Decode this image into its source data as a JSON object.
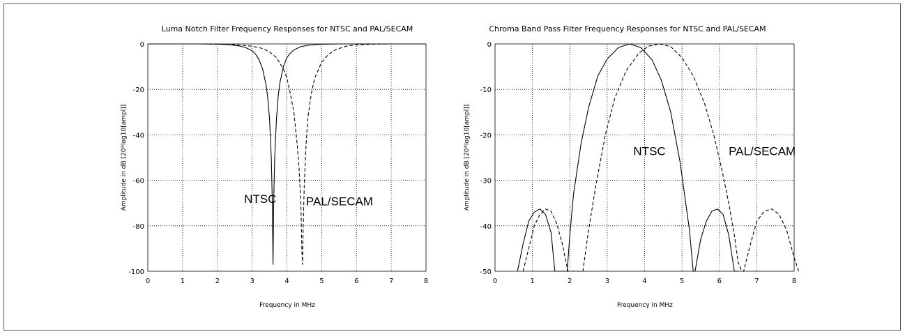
{
  "chart_data": [
    {
      "type": "line",
      "title": "Luma Notch Filter Frequency Responses for NTSC and PAL/SECAM",
      "xlabel": "Frequency in MHz",
      "ylabel": "Amplitude in dB [20*log10[ampl]]",
      "xlim": [
        0,
        8
      ],
      "ylim": [
        -100,
        0
      ],
      "xticks": [
        0,
        1,
        2,
        3,
        4,
        5,
        6,
        7,
        8
      ],
      "yticks": [
        0,
        -20,
        -40,
        -60,
        -80,
        -100
      ],
      "grid": true,
      "annotations": [
        {
          "text": "NTSC",
          "x": 2.77,
          "y": -70
        },
        {
          "text": "PAL/SECAM",
          "x": 4.55,
          "y": -71
        }
      ],
      "series": [
        {
          "style": "solid",
          "x": [
            0,
            1.0,
            1.5,
            2.0,
            2.3,
            2.6,
            2.8,
            3.0,
            3.1,
            3.2,
            3.3,
            3.4,
            3.45,
            3.5,
            3.55,
            3.58,
            3.6,
            3.62,
            3.65,
            3.7,
            3.75,
            3.8,
            3.9,
            4.0,
            4.1,
            4.2,
            4.4,
            4.6,
            4.8,
            5.0,
            5.5,
            6.0,
            8.0
          ],
          "y": [
            0,
            0,
            0,
            -0.1,
            -0.3,
            -0.8,
            -1.5,
            -3,
            -4.5,
            -7,
            -11,
            -18,
            -24,
            -33,
            -50,
            -70,
            -97,
            -70,
            -50,
            -33,
            -23,
            -17,
            -10,
            -6,
            -4,
            -2.6,
            -1.2,
            -0.6,
            -0.3,
            -0.15,
            0,
            0,
            0
          ]
        },
        {
          "style": "dashed",
          "x": [
            0,
            1.5,
            2.0,
            2.5,
            3.0,
            3.3,
            3.5,
            3.7,
            3.9,
            4.0,
            4.1,
            4.2,
            4.3,
            4.35,
            4.4,
            4.43,
            4.45,
            4.47,
            4.5,
            4.55,
            4.6,
            4.7,
            4.8,
            5.0,
            5.2,
            5.4,
            5.7,
            6.0,
            6.5,
            7.0,
            8.0
          ],
          "y": [
            0,
            0,
            -0.1,
            -0.3,
            -1.0,
            -2,
            -3.5,
            -6,
            -11,
            -15,
            -22,
            -30,
            -45,
            -55,
            -70,
            -90,
            -97,
            -80,
            -62,
            -45,
            -33,
            -22,
            -15,
            -8,
            -4.5,
            -2.5,
            -1,
            -0.4,
            -0.1,
            0,
            0
          ]
        }
      ]
    },
    {
      "type": "line",
      "title": "Chroma Band Pass Filter Frequency Responses for NTSC and PAL/SECAM",
      "xlabel": "Frequency in MHz",
      "ylabel": "Amplitude in dB [20*log10[ampl]]",
      "xlim": [
        0,
        8
      ],
      "ylim": [
        -50,
        0
      ],
      "xticks": [
        0,
        1,
        2,
        3,
        4,
        5,
        6,
        7,
        8
      ],
      "yticks": [
        0,
        -10,
        -20,
        -30,
        -40,
        -50
      ],
      "grid": true,
      "annotations": [
        {
          "text": "NTSC",
          "x": 3.7,
          "y": -24.5
        },
        {
          "text": "PAL/SECAM",
          "x": 6.25,
          "y": -24.5
        }
      ],
      "series": [
        {
          "style": "solid",
          "x": [
            0.6,
            0.75,
            0.9,
            1.05,
            1.2,
            1.35,
            1.5,
            1.6,
            1.7,
            1.85,
            1.93,
            2.0,
            2.1,
            2.3,
            2.5,
            2.75,
            3.0,
            3.3,
            3.6,
            3.9,
            4.2,
            4.45,
            4.7,
            4.95,
            5.2,
            5.3,
            5.35,
            5.5,
            5.65,
            5.8,
            5.95,
            6.1,
            6.25,
            6.4,
            6.5
          ],
          "y": [
            -50,
            -44,
            -39,
            -37,
            -36.3,
            -37.5,
            -41.5,
            -50,
            -50,
            -50,
            -50,
            -42,
            -33,
            -22,
            -14,
            -7,
            -3.3,
            -0.8,
            0,
            -0.8,
            -3.5,
            -8,
            -15,
            -26,
            -41,
            -50,
            -50,
            -43,
            -39,
            -36.8,
            -36.3,
            -37.5,
            -42,
            -50,
            -50
          ]
        },
        {
          "style": "dashed",
          "x": [
            0.75,
            0.9,
            1.05,
            1.2,
            1.35,
            1.5,
            1.65,
            1.8,
            1.95,
            2.05,
            2.15,
            2.25,
            2.35,
            2.5,
            2.7,
            2.95,
            3.2,
            3.5,
            3.85,
            4.1,
            4.4,
            4.7,
            5.0,
            5.3,
            5.6,
            5.85,
            6.05,
            6.25,
            6.4,
            6.5,
            6.6,
            6.65,
            6.8,
            7.0,
            7.2,
            7.4,
            7.6,
            7.8,
            8.0,
            8.12
          ],
          "y": [
            -50,
            -45,
            -40,
            -37.5,
            -36.3,
            -36.8,
            -39.5,
            -44,
            -50,
            -50,
            -50,
            -50,
            -50,
            -41,
            -31,
            -20,
            -12,
            -6,
            -2,
            -0.5,
            0,
            -0.6,
            -3,
            -7,
            -13,
            -20,
            -27,
            -35,
            -42,
            -48,
            -50,
            -50,
            -45,
            -39,
            -36.8,
            -36.3,
            -37.5,
            -41,
            -47,
            -50
          ]
        }
      ]
    }
  ]
}
